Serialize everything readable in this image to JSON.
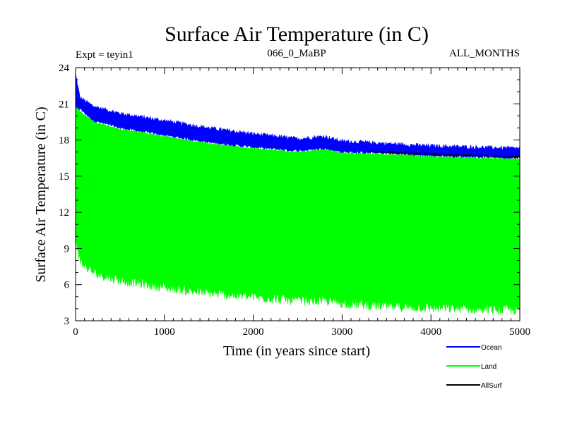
{
  "chart_data": {
    "type": "line",
    "title": "Surface Air Temperature (in C)",
    "subtitle_left": "Expt = teyin1",
    "subtitle_center": "066_0_MaBP",
    "subtitle_right": "ALL_MONTHS",
    "xlabel": "Time (in years since start)",
    "ylabel": "Surface Air Temperature (in C)",
    "xlim": [
      0,
      5000
    ],
    "ylim": [
      3,
      24
    ],
    "xticks": [
      0,
      1000,
      2000,
      3000,
      4000,
      5000
    ],
    "yticks": [
      3,
      6,
      9,
      12,
      15,
      18,
      21,
      24
    ],
    "x": [
      0,
      50,
      200,
      500,
      1000,
      1500,
      2000,
      2500,
      2800,
      3000,
      3500,
      4000,
      4500,
      5000
    ],
    "series": [
      {
        "name": "Ocean",
        "color": "#0000ff",
        "upper": [
          23.5,
          21.5,
          20.8,
          20.2,
          19.6,
          19.0,
          18.5,
          18.1,
          18.3,
          17.9,
          17.7,
          17.5,
          17.4,
          17.3
        ],
        "lower": [
          20.5,
          20.6,
          19.6,
          19.0,
          18.4,
          17.8,
          17.4,
          17.1,
          17.3,
          17.0,
          16.9,
          16.7,
          16.6,
          16.5
        ]
      },
      {
        "name": "Land",
        "color": "#00ff00",
        "upper": [
          20.7,
          20.4,
          19.5,
          18.9,
          18.3,
          17.7,
          17.3,
          17.0,
          17.2,
          16.9,
          16.8,
          16.6,
          16.5,
          16.4
        ],
        "lower": [
          10.0,
          7.9,
          7.0,
          6.4,
          5.8,
          5.3,
          5.0,
          4.7,
          4.7,
          4.5,
          4.2,
          4.1,
          4.0,
          3.9
        ]
      },
      {
        "name": "AllSurf",
        "color": "#000000",
        "values": [
          21.0,
          20.7,
          19.8,
          19.2,
          18.6,
          18.0,
          17.5,
          17.2,
          17.4,
          17.1,
          17.0,
          16.8,
          16.7,
          16.6
        ]
      }
    ],
    "legend_position": "bottom-right",
    "grid": false
  }
}
